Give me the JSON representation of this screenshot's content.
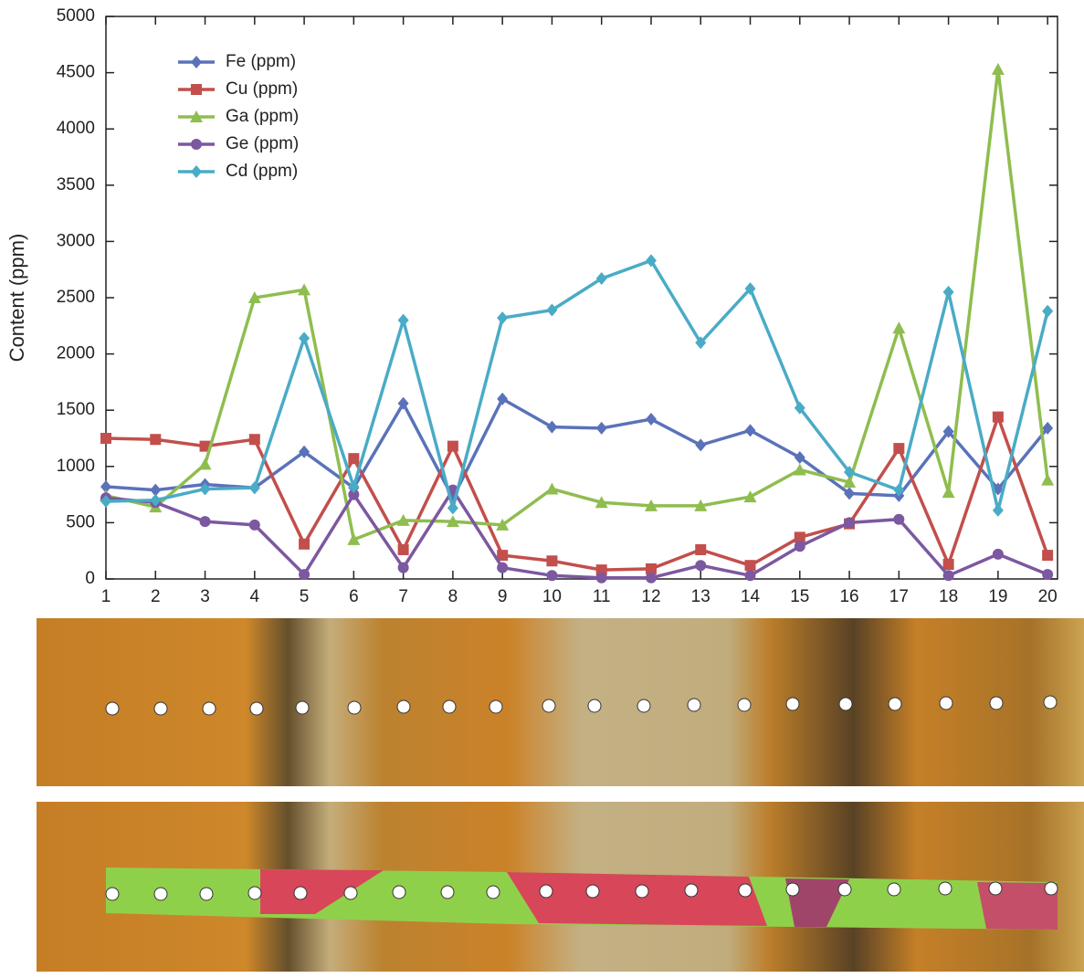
{
  "chart_data": {
    "type": "line",
    "ylabel": "Content (ppm)",
    "x": [
      1,
      2,
      3,
      4,
      5,
      6,
      7,
      8,
      9,
      10,
      11,
      12,
      13,
      14,
      15,
      16,
      17,
      18,
      19,
      20
    ],
    "xlim": [
      1,
      20.2
    ],
    "xticks": [
      1,
      2,
      3,
      4,
      5,
      6,
      7,
      8,
      9,
      10,
      11,
      12,
      13,
      14,
      15,
      16,
      17,
      18,
      19,
      20
    ],
    "ylim": [
      0,
      5000
    ],
    "yticks": [
      0,
      500,
      1000,
      1500,
      2000,
      2500,
      3000,
      3500,
      4000,
      4500,
      5000
    ],
    "grid": false,
    "legend": "upper left",
    "series": [
      {
        "name": "Fe (ppm)",
        "color": "#5a72b9",
        "marker": "diamond",
        "values": [
          820,
          790,
          840,
          810,
          1130,
          810,
          1560,
          720,
          1600,
          1350,
          1340,
          1420,
          1190,
          1320,
          1080,
          760,
          740,
          1310,
          800,
          1340
        ]
      },
      {
        "name": "Cu (ppm)",
        "color": "#c24f4c",
        "marker": "square",
        "values": [
          1250,
          1240,
          1180,
          1240,
          310,
          1070,
          260,
          1180,
          210,
          160,
          80,
          90,
          260,
          120,
          370,
          490,
          1160,
          130,
          1440,
          210
        ]
      },
      {
        "name": "Ga (ppm)",
        "color": "#8fbd4f",
        "marker": "triangle",
        "values": [
          740,
          640,
          1020,
          2500,
          2570,
          350,
          520,
          510,
          480,
          800,
          680,
          650,
          650,
          730,
          970,
          860,
          2230,
          770,
          4530,
          880
        ]
      },
      {
        "name": "Ge (ppm)",
        "color": "#7c58a0",
        "marker": "circle",
        "values": [
          720,
          680,
          510,
          480,
          40,
          750,
          100,
          790,
          100,
          30,
          10,
          10,
          120,
          30,
          290,
          500,
          530,
          30,
          220,
          40
        ]
      },
      {
        "name": "Cd (ppm)",
        "color": "#4aabc6",
        "marker": "diamond",
        "values": [
          690,
          700,
          800,
          810,
          2140,
          820,
          2300,
          630,
          2320,
          2390,
          2670,
          2830,
          2100,
          2580,
          1520,
          950,
          790,
          2550,
          610,
          2380
        ]
      }
    ]
  }
}
